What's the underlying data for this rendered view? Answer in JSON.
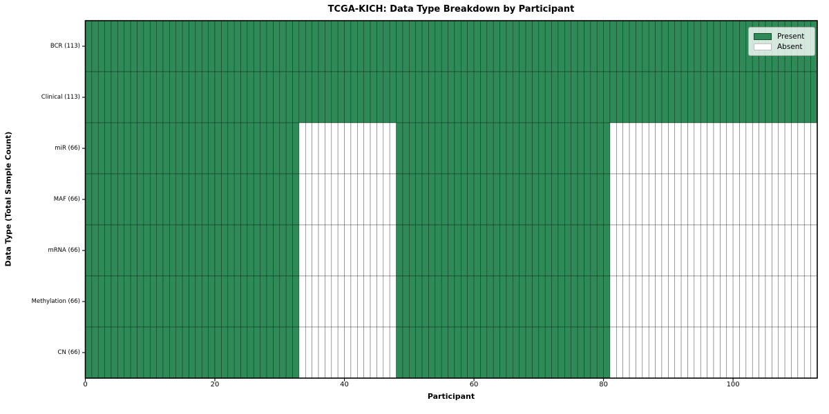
{
  "figure": {
    "title": "TCGA-KICH: Data Type Breakdown by Participant"
  },
  "chart_data": {
    "type": "heatmap",
    "title": "TCGA-KICH: Data Type Breakdown by Participant",
    "xlabel": "Participant",
    "ylabel": "Data Type (Total Sample Count)",
    "n_participants": 113,
    "x_ticks": [
      0,
      20,
      40,
      60,
      80,
      100
    ],
    "grid": false,
    "legend_position": "upper right",
    "rows": [
      {
        "label": "BCR (113)",
        "total_samples": 113,
        "present_ranges": [
          [
            0,
            113
          ]
        ]
      },
      {
        "label": "Clinical (113)",
        "total_samples": 113,
        "present_ranges": [
          [
            0,
            113
          ]
        ]
      },
      {
        "label": "miR (66)",
        "total_samples": 66,
        "present_ranges": [
          [
            0,
            33
          ],
          [
            48,
            81
          ]
        ]
      },
      {
        "label": "MAF (66)",
        "total_samples": 66,
        "present_ranges": [
          [
            0,
            33
          ],
          [
            48,
            81
          ]
        ]
      },
      {
        "label": "mRNA (66)",
        "total_samples": 66,
        "present_ranges": [
          [
            0,
            33
          ],
          [
            48,
            81
          ]
        ]
      },
      {
        "label": "Methylation (66)",
        "total_samples": 66,
        "present_ranges": [
          [
            0,
            33
          ],
          [
            48,
            81
          ]
        ]
      },
      {
        "label": "CN (66)",
        "total_samples": 66,
        "present_ranges": [
          [
            0,
            33
          ],
          [
            48,
            81
          ]
        ]
      }
    ],
    "legend": [
      {
        "label": "Present",
        "color": "#2e8b57"
      },
      {
        "label": "Absent",
        "color": "#ffffff"
      }
    ],
    "colors": {
      "present": "#2e8b57",
      "absent": "#ffffff",
      "cell_edge": "rgba(0,0,0,0.5)",
      "frame": "#000000"
    }
  }
}
